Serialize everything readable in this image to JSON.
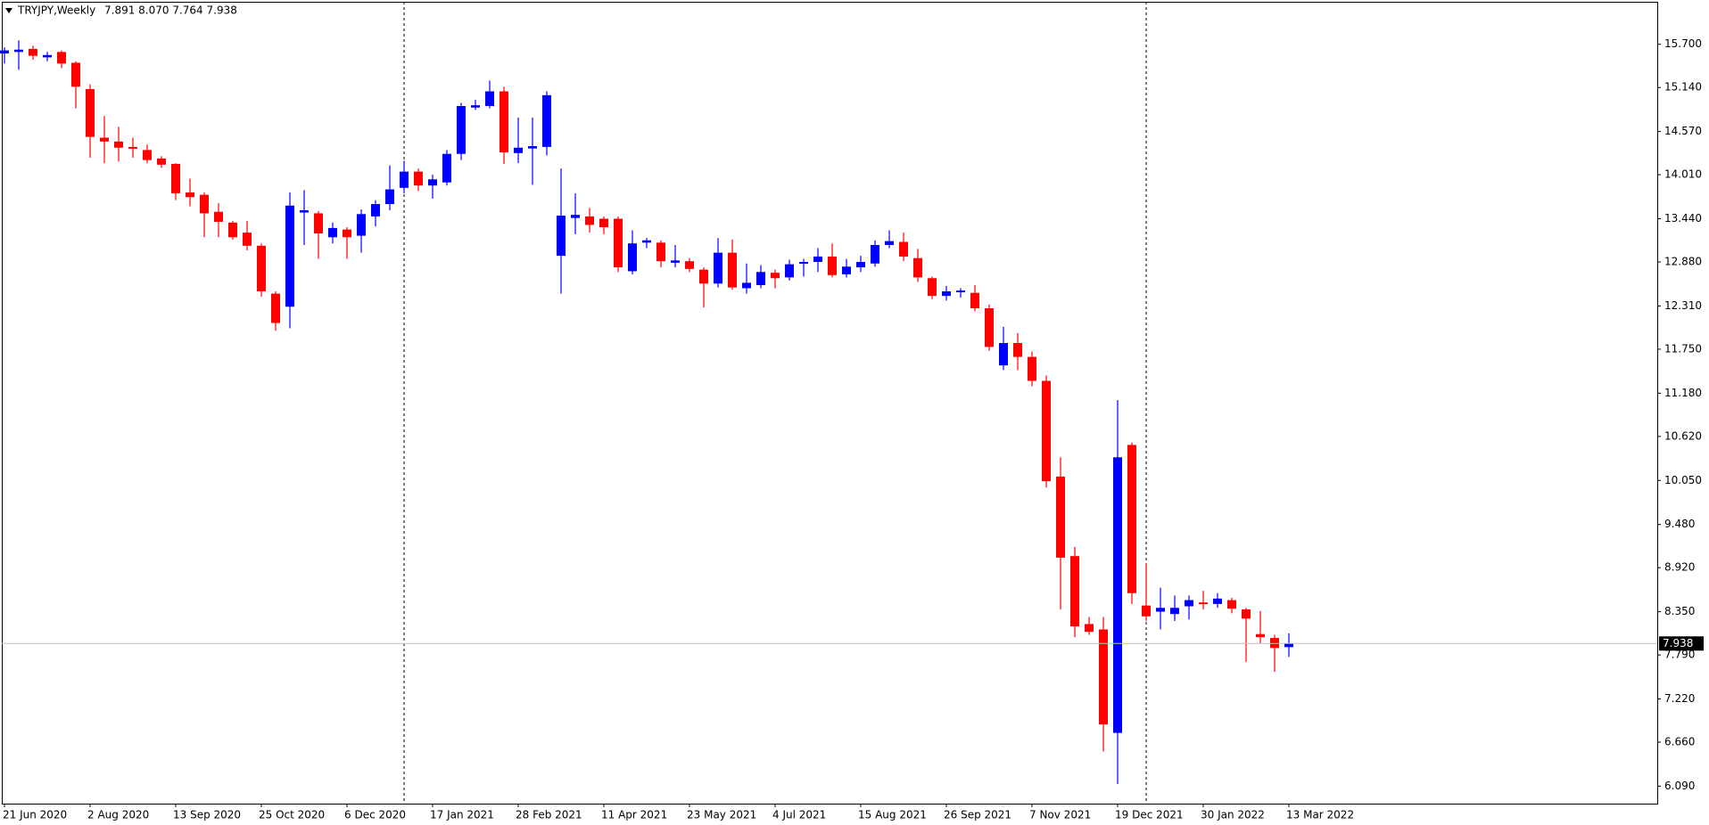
{
  "chart_data": {
    "type": "candlestick",
    "title": "TRYJPY,Weekly",
    "subtitle": "7.891 8.070 7.764 7.938",
    "up_color": "#0000ff",
    "down_color": "#ff0000",
    "grid": false,
    "categories": [
      "21 Jun 2020",
      null,
      null,
      null,
      null,
      null,
      "2 Aug 2020",
      null,
      null,
      null,
      null,
      null,
      "13 Sep 2020",
      null,
      null,
      null,
      null,
      null,
      "25 Oct 2020",
      null,
      null,
      null,
      null,
      null,
      "6 Dec 2020",
      null,
      null,
      null,
      null,
      null,
      "17 Jan 2021",
      null,
      null,
      null,
      null,
      null,
      "28 Feb 2021",
      null,
      null,
      null,
      null,
      null,
      "11 Apr 2021",
      null,
      null,
      null,
      null,
      null,
      "23 May 2021",
      null,
      null,
      null,
      null,
      null,
      "4 Jul 2021",
      null,
      null,
      null,
      null,
      null,
      "15 Aug 2021",
      null,
      null,
      null,
      null,
      null,
      "26 Sep 2021",
      null,
      null,
      null,
      null,
      null,
      "7 Nov 2021",
      null,
      null,
      null,
      null,
      null,
      "19 Dec 2021",
      null,
      null,
      null,
      null,
      null,
      "30 Jan 2022",
      null,
      null,
      null,
      null,
      null,
      "13 Mar 2022"
    ],
    "open": [
      15.58,
      15.6,
      15.64,
      15.53,
      15.6,
      15.46,
      15.12,
      14.49,
      14.44,
      14.37,
      14.33,
      14.22,
      14.15,
      13.78,
      13.75,
      13.53,
      13.39,
      13.26,
      13.09,
      12.47,
      12.3,
      13.52,
      13.51,
      13.2,
      13.3,
      13.22,
      13.47,
      13.63,
      13.84,
      14.05,
      13.87,
      13.91,
      14.28,
      14.88,
      14.9,
      15.09,
      14.29,
      14.35,
      14.37,
      12.96,
      13.45,
      13.47,
      13.44,
      13.44,
      12.76,
      13.13,
      13.13,
      12.87,
      12.89,
      12.78,
      12.6,
      13.0,
      12.54,
      12.58,
      12.74,
      12.68,
      12.86,
      12.88,
      12.95,
      12.72,
      12.81,
      12.86,
      13.1,
      13.14,
      12.93,
      12.67,
      12.44,
      12.49,
      12.48,
      12.28,
      11.54,
      11.83,
      11.65,
      11.34,
      10.1,
      9.07,
      8.19,
      8.12,
      6.78,
      10.51,
      8.43,
      8.35,
      8.32,
      8.42,
      8.47,
      8.45,
      8.5,
      8.38,
      8.06,
      8.01,
      7.891
    ],
    "high": [
      15.66,
      15.75,
      15.68,
      15.6,
      15.62,
      15.48,
      15.18,
      14.77,
      14.63,
      14.49,
      14.4,
      14.25,
      14.16,
      13.96,
      13.78,
      13.64,
      13.41,
      13.41,
      13.12,
      12.5,
      13.78,
      13.81,
      13.54,
      13.39,
      13.33,
      13.56,
      13.68,
      14.13,
      14.19,
      14.09,
      14.01,
      14.33,
      14.94,
      14.98,
      15.23,
      15.15,
      14.75,
      14.75,
      15.09,
      14.09,
      13.77,
      13.58,
      13.47,
      13.47,
      13.29,
      13.19,
      13.16,
      13.1,
      12.93,
      12.81,
      13.19,
      13.17,
      12.86,
      12.84,
      12.78,
      12.91,
      12.92,
      13.06,
      13.12,
      12.92,
      12.96,
      13.16,
      13.29,
      13.26,
      13.05,
      12.69,
      12.57,
      12.54,
      12.58,
      12.33,
      12.04,
      11.96,
      11.72,
      11.41,
      10.35,
      9.19,
      8.28,
      8.28,
      11.09,
      10.54,
      8.97,
      8.66,
      8.56,
      8.56,
      8.62,
      8.59,
      8.53,
      8.4,
      8.36,
      8.05,
      8.07
    ],
    "low": [
      15.45,
      15.37,
      15.5,
      15.48,
      15.39,
      14.87,
      14.23,
      14.16,
      14.18,
      14.23,
      14.16,
      14.1,
      13.68,
      13.6,
      13.2,
      13.2,
      13.17,
      13.03,
      12.43,
      11.99,
      12.02,
      13.1,
      12.92,
      13.12,
      12.92,
      13.0,
      13.34,
      13.55,
      13.77,
      13.8,
      13.7,
      13.87,
      14.2,
      14.85,
      14.87,
      14.15,
      14.16,
      13.88,
      14.26,
      12.47,
      13.24,
      13.26,
      13.24,
      12.75,
      12.72,
      13.06,
      12.81,
      12.81,
      12.75,
      12.29,
      12.55,
      12.52,
      12.47,
      12.54,
      12.54,
      12.64,
      12.69,
      12.75,
      12.68,
      12.68,
      12.75,
      12.82,
      13.06,
      12.89,
      12.62,
      12.4,
      12.38,
      12.42,
      12.24,
      11.73,
      11.48,
      11.48,
      11.27,
      9.96,
      8.38,
      8.02,
      8.05,
      6.54,
      6.12,
      8.45,
      8.23,
      8.12,
      8.23,
      8.25,
      8.38,
      8.4,
      8.33,
      7.7,
      7.94,
      7.57,
      7.764
    ],
    "close": [
      15.62,
      15.63,
      15.55,
      15.56,
      15.45,
      15.15,
      14.5,
      14.44,
      14.36,
      14.35,
      14.2,
      14.14,
      13.77,
      13.72,
      13.51,
      13.4,
      13.2,
      13.09,
      12.5,
      12.09,
      13.61,
      13.55,
      13.25,
      13.32,
      13.2,
      13.5,
      13.63,
      13.82,
      14.05,
      13.87,
      13.95,
      14.28,
      14.9,
      14.91,
      15.09,
      14.3,
      14.36,
      14.38,
      15.04,
      13.48,
      13.49,
      13.36,
      13.33,
      12.81,
      13.12,
      13.16,
      12.89,
      12.9,
      12.79,
      12.6,
      13.0,
      12.55,
      12.61,
      12.75,
      12.67,
      12.85,
      12.88,
      12.95,
      12.71,
      12.82,
      12.88,
      13.1,
      13.15,
      12.95,
      12.68,
      12.44,
      12.5,
      12.51,
      12.28,
      11.78,
      11.83,
      11.65,
      11.34,
      10.04,
      9.05,
      8.16,
      8.09,
      6.89,
      10.35,
      8.59,
      8.29,
      8.4,
      8.4,
      8.5,
      8.45,
      8.52,
      8.39,
      8.26,
      8.02,
      7.88,
      7.938
    ],
    "ylim": [
      5.864,
      16.25
    ],
    "yticks": [
      {
        "value": 15.7,
        "label": "15.700"
      },
      {
        "value": 15.14,
        "label": "15.140"
      },
      {
        "value": 14.57,
        "label": "14.570"
      },
      {
        "value": 14.01,
        "label": "14.010"
      },
      {
        "value": 13.44,
        "label": "13.440"
      },
      {
        "value": 12.88,
        "label": "12.880"
      },
      {
        "value": 12.31,
        "label": "12.310"
      },
      {
        "value": 11.75,
        "label": "11.750"
      },
      {
        "value": 11.18,
        "label": "11.180"
      },
      {
        "value": 10.62,
        "label": "10.620"
      },
      {
        "value": 10.05,
        "label": "10.050"
      },
      {
        "value": 9.48,
        "label": "9.480"
      },
      {
        "value": 8.92,
        "label": "8.920"
      },
      {
        "value": 8.35,
        "label": "8.350"
      },
      {
        "value": 7.79,
        "label": "7.790"
      },
      {
        "value": 7.22,
        "label": "7.220"
      },
      {
        "value": 6.66,
        "label": "6.660"
      },
      {
        "value": 6.09,
        "label": "6.090"
      }
    ],
    "last_price": 7.938
  }
}
